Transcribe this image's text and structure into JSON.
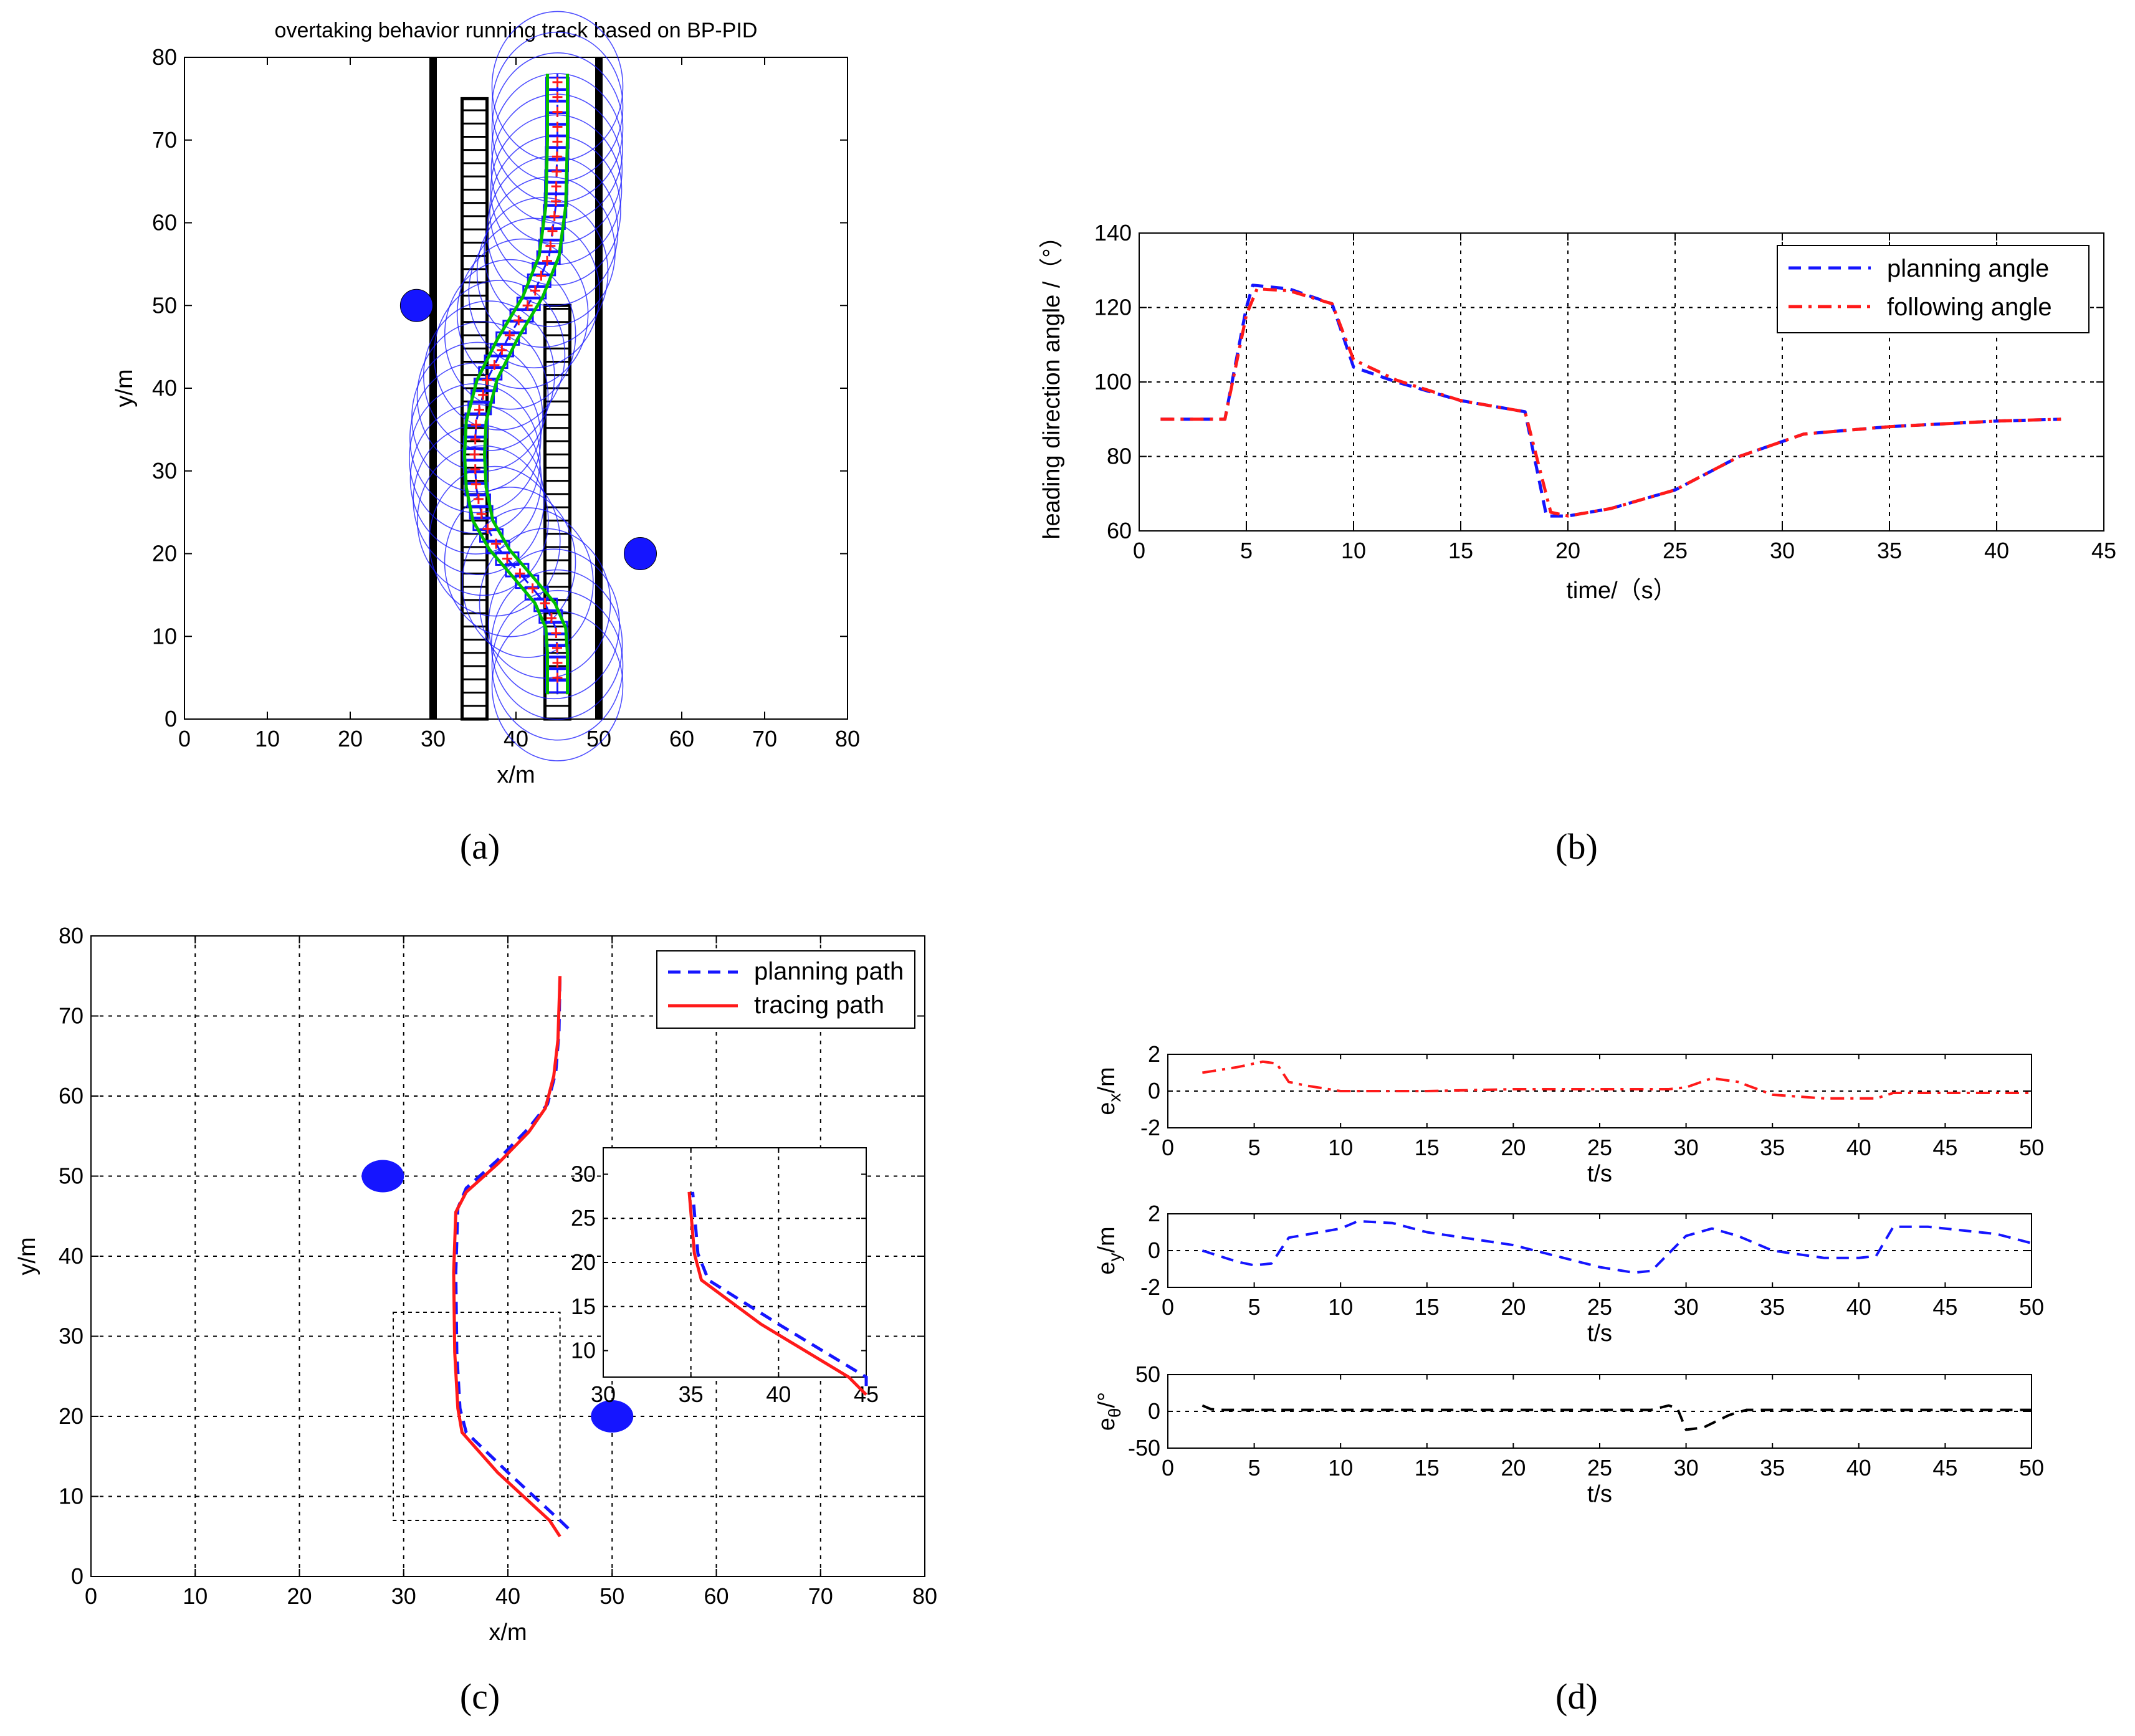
{
  "colors": {
    "blue": "#1515ff",
    "red": "#ff1a1a",
    "green": "#00c000",
    "black": "#000000"
  },
  "chart_data": [
    {
      "panel": "a",
      "label": "(a)",
      "type": "line",
      "title": "overtaking behavior running track based on BP-PID",
      "xlabel": "x/m",
      "ylabel": "y/m",
      "xlim": [
        0,
        80
      ],
      "ylim": [
        0,
        80
      ],
      "xticks": [
        0,
        10,
        20,
        30,
        40,
        50,
        60,
        70,
        80
      ],
      "yticks": [
        0,
        10,
        20,
        30,
        40,
        50,
        60,
        70,
        80
      ],
      "grid": false,
      "lane_lines_x": [
        30,
        50
      ],
      "obstacles": [
        {
          "x": 28,
          "y": 50
        },
        {
          "x": 55,
          "y": 20
        }
      ],
      "parked_vehicle_columns": [
        {
          "x": 35,
          "y_from": 0,
          "y_to": 75
        },
        {
          "x": 45,
          "y_from": 0,
          "y_to": 50
        }
      ],
      "series": [
        {
          "name": "trajectory",
          "x": [
            45,
            45,
            44.8,
            43.5,
            41,
            38,
            36,
            35.2,
            35,
            35.2,
            36.5,
            39,
            42,
            44,
            44.8,
            45,
            45
          ],
          "y": [
            3,
            8,
            11,
            14,
            17,
            20.5,
            24,
            28,
            32,
            36,
            41,
            46,
            51,
            56,
            62,
            70,
            78
          ]
        }
      ]
    },
    {
      "panel": "b",
      "label": "(b)",
      "type": "line",
      "title": "",
      "xlabel": "time/（s）",
      "ylabel": "heading direction angle /（°）",
      "xlim": [
        0,
        45
      ],
      "ylim": [
        60,
        140
      ],
      "xticks": [
        0,
        5,
        10,
        15,
        20,
        25,
        30,
        35,
        40,
        45
      ],
      "yticks": [
        60,
        80,
        100,
        120,
        140
      ],
      "grid": true,
      "legend_position": "top-right",
      "series": [
        {
          "name": "planning angle",
          "style": "dashed",
          "color": "blue",
          "x": [
            1,
            4,
            5,
            5.3,
            7,
            9,
            10,
            12,
            15,
            18,
            19,
            20,
            22,
            25,
            28,
            31,
            35,
            40,
            43
          ],
          "y": [
            90,
            90,
            120,
            126,
            125,
            121,
            104,
            100,
            95,
            92,
            64,
            64,
            66,
            71,
            80,
            86,
            88,
            89.5,
            90
          ]
        },
        {
          "name": "following angle",
          "style": "dashdot",
          "color": "red",
          "x": [
            1,
            4,
            5,
            5.5,
            7,
            9,
            10,
            12,
            15,
            18,
            19.2,
            20,
            22,
            25,
            28,
            31,
            35,
            40,
            43
          ],
          "y": [
            90,
            90,
            118,
            125,
            124.5,
            121,
            106,
            100.5,
            95,
            92,
            65,
            64,
            66,
            71,
            80,
            86,
            88,
            89.5,
            90
          ]
        }
      ]
    },
    {
      "panel": "c",
      "label": "(c)",
      "type": "line",
      "title": "",
      "xlabel": "x/m",
      "ylabel": "y/m",
      "xlim": [
        0,
        80
      ],
      "ylim": [
        0,
        80
      ],
      "xticks": [
        0,
        10,
        20,
        30,
        40,
        50,
        60,
        70,
        80
      ],
      "yticks": [
        0,
        10,
        20,
        30,
        40,
        50,
        60,
        70,
        80
      ],
      "grid": true,
      "legend_position": "top-right",
      "obstacles": [
        {
          "x": 28,
          "y": 50
        },
        {
          "x": 50,
          "y": 20
        }
      ],
      "zoom_region": {
        "x": [
          29,
          45
        ],
        "y": [
          7,
          33
        ]
      },
      "series": [
        {
          "name": "planning path",
          "style": "dashed",
          "color": "blue",
          "x": [
            45.8,
            45,
            40,
            36,
            35.4,
            35.1,
            35,
            35.2,
            36,
            39,
            42,
            43.8,
            44.6,
            44.9,
            45
          ],
          "y": [
            6,
            7,
            13,
            18,
            21,
            28,
            38,
            46,
            48.5,
            52,
            56,
            59,
            63,
            68,
            75
          ]
        },
        {
          "name": "tracing path",
          "style": "solid",
          "color": "red",
          "x": [
            45,
            44,
            39,
            35.6,
            35.2,
            34.9,
            34.8,
            35,
            36,
            39,
            42,
            43.6,
            44.4,
            44.8,
            45
          ],
          "y": [
            5,
            7,
            13,
            18,
            21,
            28,
            38,
            45.5,
            48,
            51.5,
            55.5,
            58.5,
            62.5,
            67,
            75
          ]
        }
      ],
      "inset": {
        "xlim": [
          30,
          45
        ],
        "ylim": [
          7,
          33
        ],
        "xticks": [
          30,
          35,
          40,
          45
        ],
        "yticks": [
          10,
          15,
          20,
          25,
          30
        ]
      }
    },
    {
      "panel": "d",
      "label": "(d)",
      "type": "line",
      "subplots": [
        {
          "ylabel": "e_x/m",
          "ylabel_base": "e",
          "ylabel_sub": "x",
          "ylabel_unit": "/m",
          "xlabel": "t/s",
          "xlim": [
            0,
            50
          ],
          "ylim": [
            -2,
            2
          ],
          "xticks": [
            0,
            5,
            10,
            15,
            20,
            25,
            30,
            35,
            40,
            45,
            50
          ],
          "yticks": [
            -2,
            0,
            2
          ],
          "series": {
            "name": "e_x",
            "style": "dashdot",
            "color": "red",
            "x": [
              2,
              4,
              5.5,
              6.3,
              7,
              8,
              10,
              15,
              20,
              25,
              29,
              30,
              31.5,
              33,
              35,
              38,
              40,
              41,
              42,
              45,
              50
            ],
            "y": [
              1.0,
              1.3,
              1.6,
              1.5,
              0.5,
              0.3,
              0.0,
              0.0,
              0.1,
              0.1,
              0.1,
              0.2,
              0.7,
              0.5,
              -0.2,
              -0.4,
              -0.4,
              -0.4,
              -0.1,
              -0.1,
              -0.1
            ]
          }
        },
        {
          "ylabel": "e_y/m",
          "ylabel_base": "e",
          "ylabel_sub": "y",
          "ylabel_unit": "/m",
          "xlabel": "t/s",
          "xlim": [
            0,
            50
          ],
          "ylim": [
            -2,
            2
          ],
          "xticks": [
            0,
            5,
            10,
            15,
            20,
            25,
            30,
            35,
            40,
            45,
            50
          ],
          "yticks": [
            -2,
            0,
            2
          ],
          "series": {
            "name": "e_y",
            "style": "dashed",
            "color": "blue",
            "x": [
              2,
              4,
              5,
              6,
              7,
              10,
              11,
              13,
              15,
              20,
              25,
              27,
              28,
              30,
              31.5,
              33,
              35,
              38,
              40,
              41,
              42,
              44,
              48,
              50
            ],
            "y": [
              0,
              -0.6,
              -0.8,
              -0.7,
              0.7,
              1.2,
              1.6,
              1.5,
              1.0,
              0.3,
              -0.9,
              -1.2,
              -1.1,
              0.8,
              1.2,
              0.8,
              0.0,
              -0.4,
              -0.4,
              -0.3,
              1.3,
              1.3,
              0.9,
              0.4
            ]
          }
        },
        {
          "ylabel": "e_θ/°",
          "ylabel_base": "e",
          "ylabel_sub": "θ",
          "ylabel_unit": "/°",
          "xlabel": "t/s",
          "xlim": [
            0,
            50
          ],
          "ylim": [
            -50,
            50
          ],
          "xticks": [
            0,
            5,
            10,
            15,
            20,
            25,
            30,
            35,
            40,
            45,
            50
          ],
          "yticks": [
            -50,
            0,
            50
          ],
          "series": {
            "name": "e_theta",
            "style": "dashed",
            "color": "black",
            "x": [
              2,
              2.5,
              3,
              5,
              10,
              20,
              28,
              29,
              29.5,
              30,
              31,
              32.5,
              33.5,
              35,
              40,
              45,
              50
            ],
            "y": [
              8,
              3,
              2,
              2,
              2,
              2,
              2,
              8,
              4,
              -25,
              -22,
              -5,
              2,
              2,
              2,
              2,
              2
            ]
          }
        }
      ]
    }
  ]
}
